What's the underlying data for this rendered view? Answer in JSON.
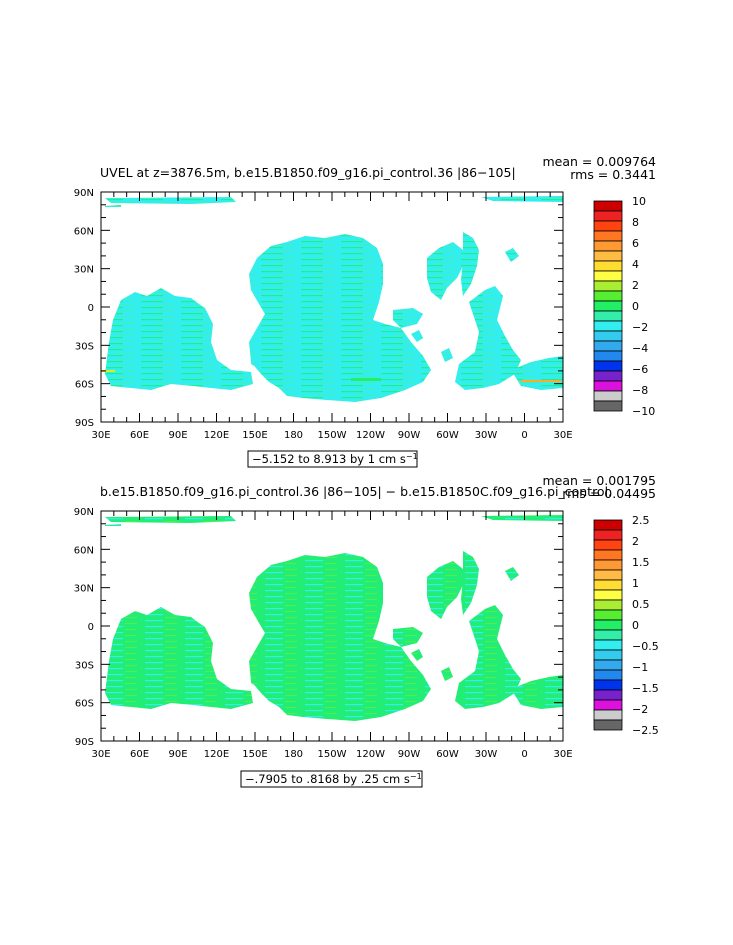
{
  "colors": {
    "land": "#ffffff",
    "water_dominant_top": "#33eeee",
    "water_dominant_bottom": "#22ee88",
    "axis": "#000000"
  },
  "maps": [
    {
      "title": "UVEL at z=3876.5m, b.e15.B1850.f09_g16.pi_control.36 |86−105|",
      "mean_label": "mean = 0.009764",
      "rms_label": "rms = 0.3441",
      "range_label": "−5.152 to 8.913 by 1 cm s",
      "range_unit_exp": "−1",
      "lat_ticks": [
        "90N",
        "60N",
        "30N",
        "0",
        "30S",
        "60S",
        "90S"
      ],
      "lon_ticks": [
        "30E",
        "60E",
        "90E",
        "120E",
        "150E",
        "180",
        "150W",
        "120W",
        "90W",
        "60W",
        "30W",
        "0",
        "30E"
      ],
      "colorbar_labels": [
        "10",
        "8",
        "6",
        "4",
        "2",
        "0",
        "−2",
        "−4",
        "−6",
        "−8",
        "−10"
      ],
      "colorbar_colors": [
        "#cc0000",
        "#ee2222",
        "#ff4411",
        "#ff7722",
        "#ff9933",
        "#ffbb44",
        "#ffdd33",
        "#ffff44",
        "#aaee33",
        "#55ee33",
        "#22ee66",
        "#33eeaa",
        "#33eeee",
        "#33ccee",
        "#33aaee",
        "#2288ee",
        "#0033ee",
        "#7722cc",
        "#dd11dd",
        "#cccccc",
        "#666666"
      ]
    },
    {
      "title": "b.e15.B1850.f09_g16.pi_control.36 |86−105| − b.e15.B1850C.f09_g16.pi_control.",
      "mean_label": "mean = 0.001795",
      "rms_label": "rms = 0.04495",
      "range_label": "−.7905 to .8168 by .25 cm s",
      "range_unit_exp": "−1",
      "lat_ticks": [
        "90N",
        "60N",
        "30N",
        "0",
        "30S",
        "60S",
        "90S"
      ],
      "lon_ticks": [
        "30E",
        "60E",
        "90E",
        "120E",
        "150E",
        "180",
        "150W",
        "120W",
        "90W",
        "60W",
        "30W",
        "0",
        "30E"
      ],
      "colorbar_labels": [
        "2.5",
        "2",
        "1.5",
        "1",
        "0.5",
        "0",
        "−0.5",
        "−1",
        "−1.5",
        "−2",
        "−2.5"
      ],
      "colorbar_colors": [
        "#cc0000",
        "#ee2222",
        "#ff4411",
        "#ff7722",
        "#ff9933",
        "#ffbb44",
        "#ffdd33",
        "#ffff44",
        "#aaee33",
        "#55ee33",
        "#22ee66",
        "#33eeaa",
        "#33eeee",
        "#33ccee",
        "#33aaee",
        "#2288ee",
        "#0033ee",
        "#7722cc",
        "#dd11dd",
        "#cccccc",
        "#666666"
      ]
    }
  ]
}
